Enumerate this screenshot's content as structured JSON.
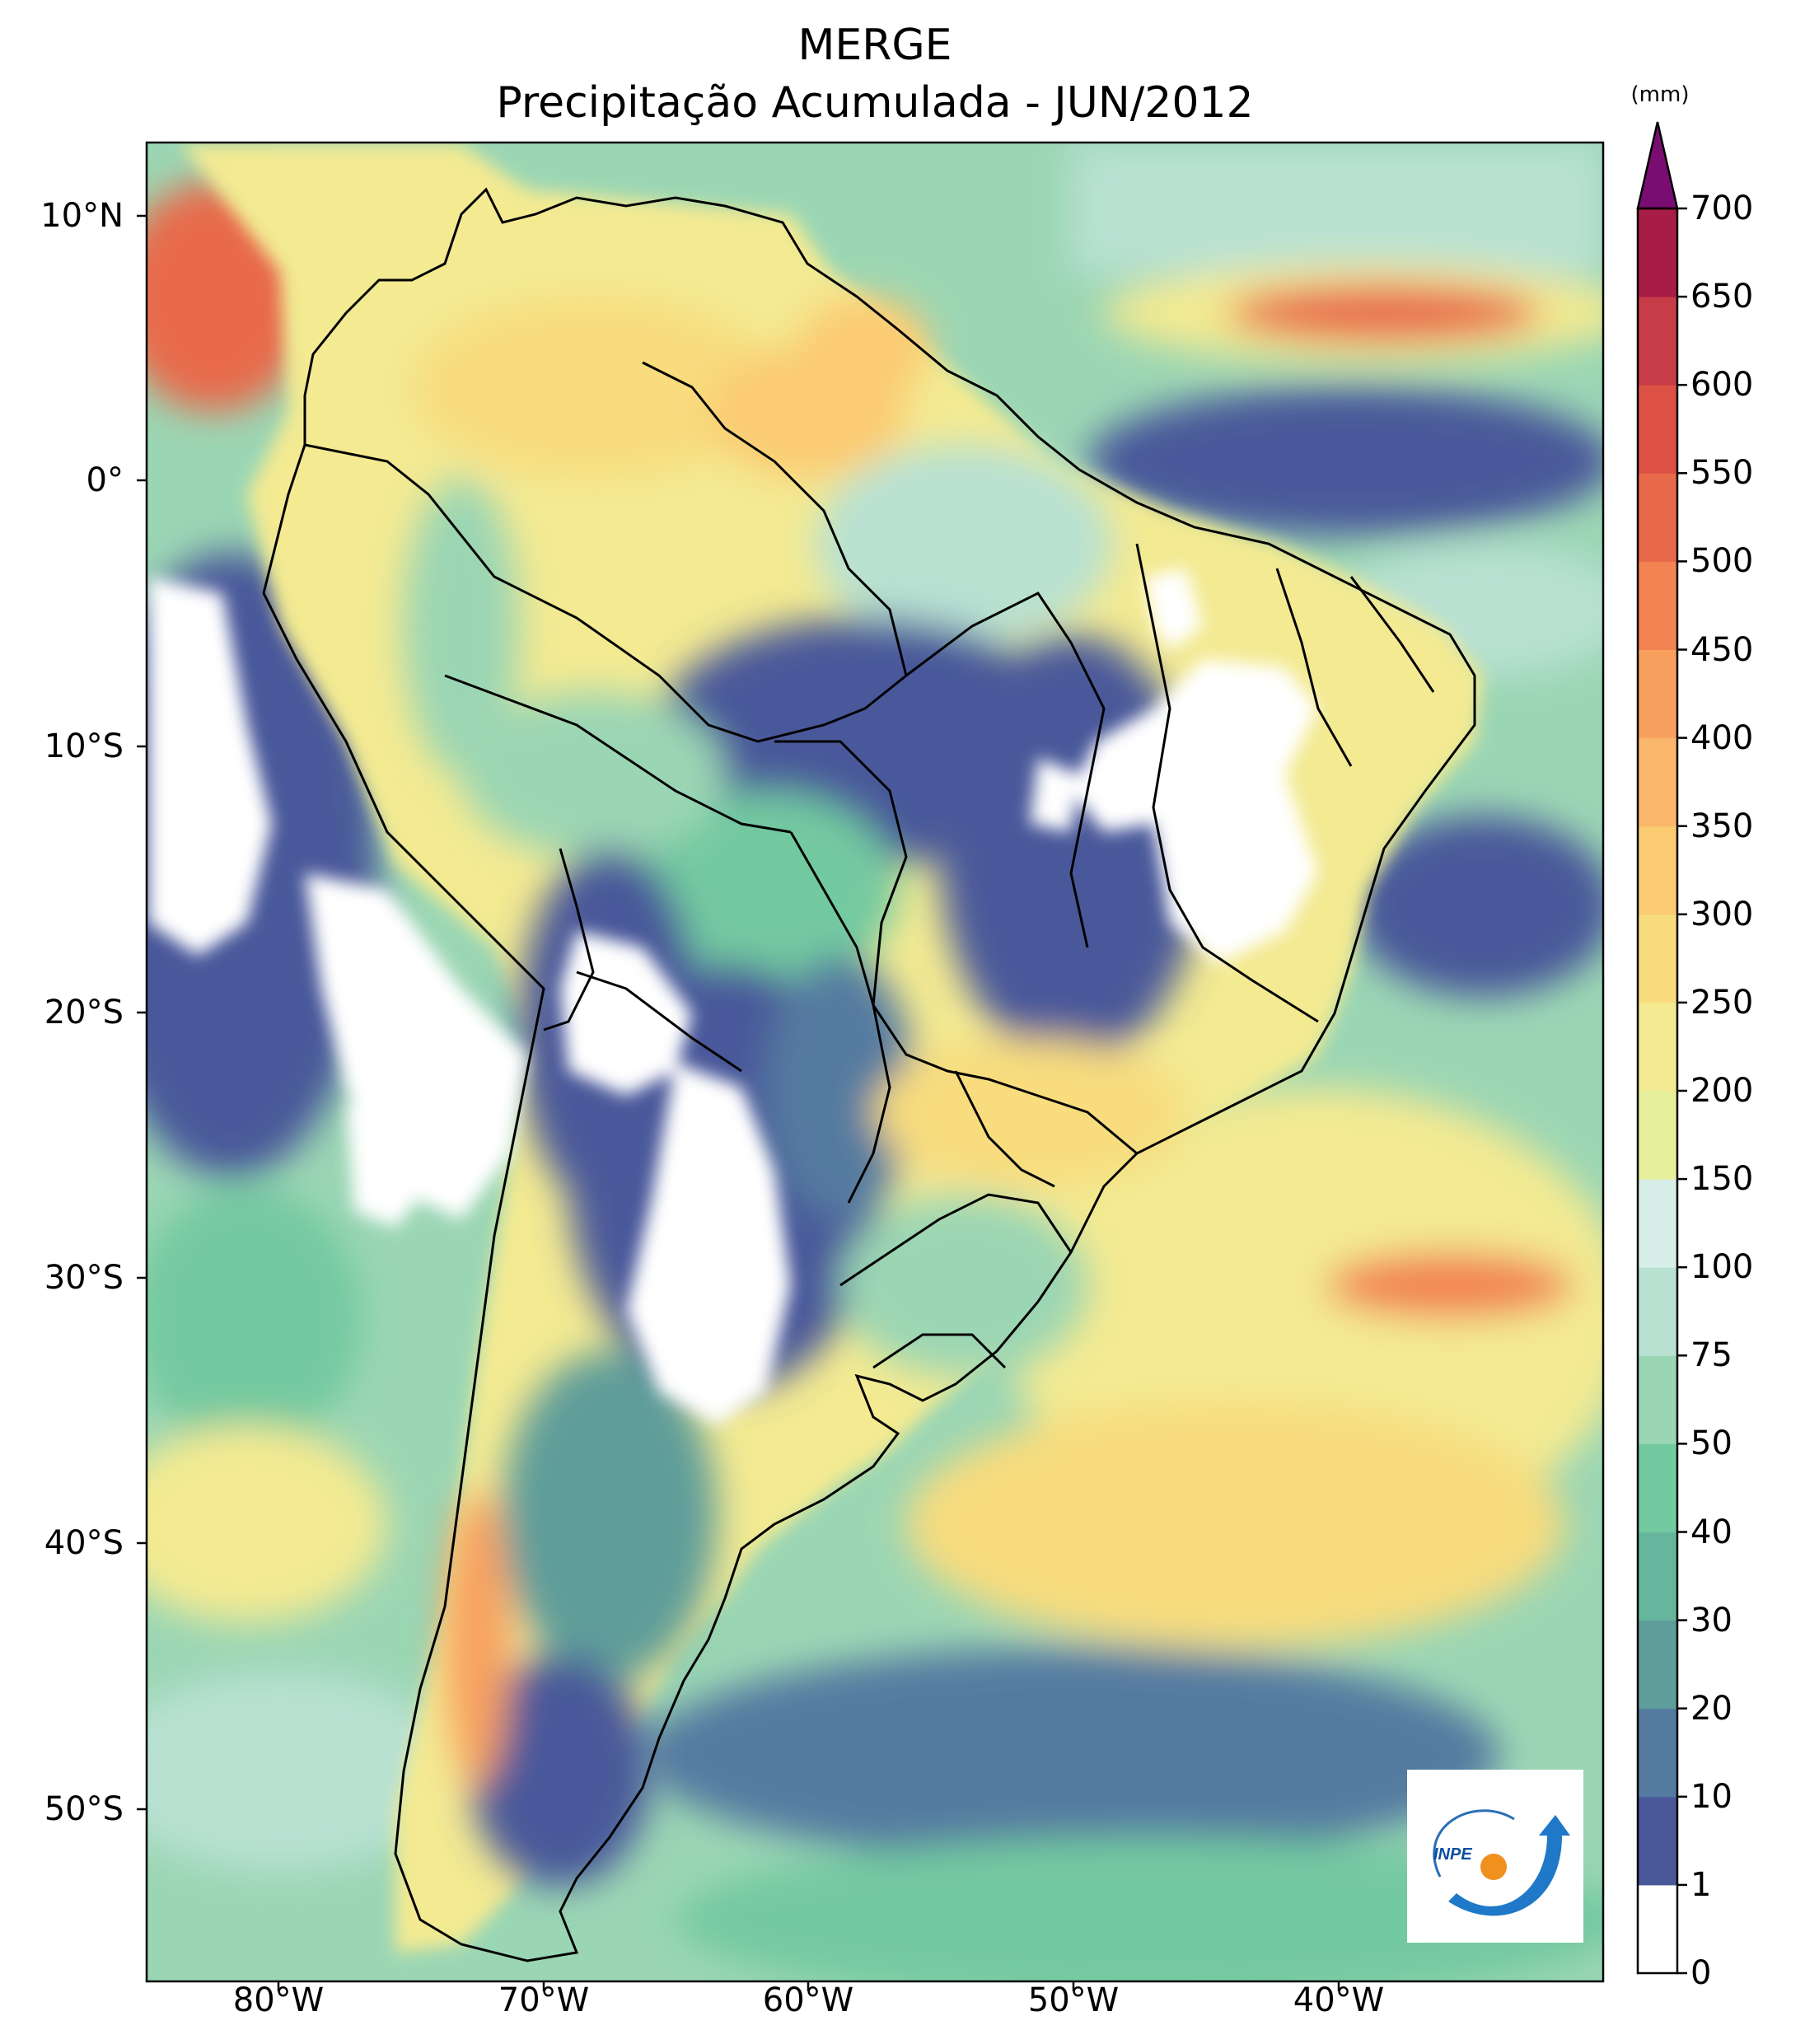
{
  "title": {
    "line1": "MERGE",
    "line2": "Precipitação Acumulada - JUN/2012"
  },
  "axes": {
    "lat_ticks": [
      "10°N",
      "0°",
      "10°S",
      "20°S",
      "30°S",
      "40°S",
      "50°S"
    ],
    "lon_ticks": [
      "80°W",
      "70°W",
      "60°W",
      "50°W",
      "40°W"
    ],
    "lat_range": [
      -56,
      13
    ],
    "lon_range": [
      -85,
      -30
    ]
  },
  "colorbar": {
    "unit": "(mm)",
    "levels": [
      "0",
      "1",
      "10",
      "20",
      "30",
      "40",
      "50",
      "75",
      "100",
      "150",
      "200",
      "250",
      "300",
      "350",
      "400",
      "450",
      "500",
      "550",
      "600",
      "650",
      "700"
    ],
    "colors": [
      "#ffffff",
      "#4a589a",
      "#547aa0",
      "#5f9d9a",
      "#66b69e",
      "#73c9a0",
      "#9bd6b4",
      "#b8e1d2",
      "#d7eee9",
      "#e6f09c",
      "#f3ea92",
      "#f8dc7e",
      "#fbcb72",
      "#fbb76b",
      "#f8a15e",
      "#f28352",
      "#e86a4b",
      "#dd5146",
      "#c73c47",
      "#a81d48",
      "#7a0d72"
    ],
    "extend": "max"
  },
  "logo": {
    "text": "INPE"
  }
}
